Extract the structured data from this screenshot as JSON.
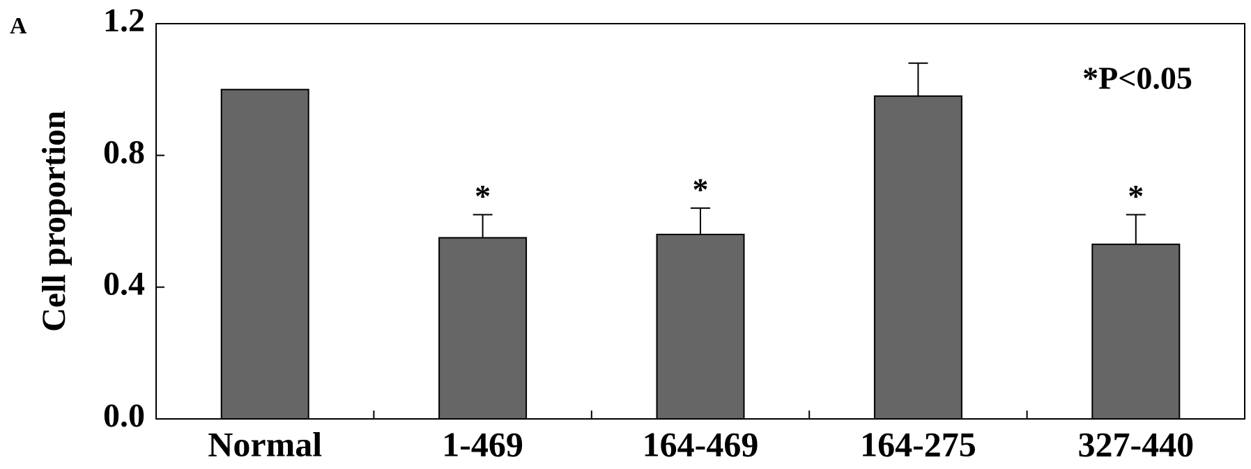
{
  "chart_data": {
    "type": "bar",
    "panel_label": "A",
    "ylabel": "Cell proportion",
    "categories": [
      "Normal",
      "1-469",
      "164-469",
      "164-275",
      "327-440"
    ],
    "values": [
      1.0,
      0.55,
      0.56,
      0.98,
      0.53
    ],
    "errors": [
      null,
      0.07,
      0.08,
      0.1,
      0.09
    ],
    "significance": [
      null,
      "*",
      "*",
      null,
      "*"
    ],
    "note": "*P<0.05",
    "color": "#666666",
    "ylim": [
      0,
      1.2
    ],
    "yticks": [
      {
        "value": 0,
        "label": "0.0"
      },
      0.4,
      0.8,
      1.2
    ]
  }
}
